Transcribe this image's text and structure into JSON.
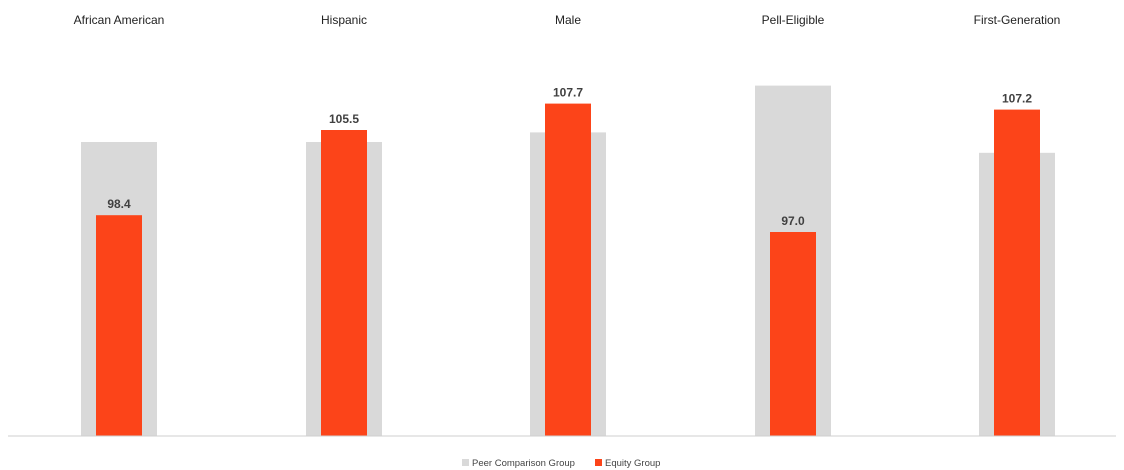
{
  "chart_data": {
    "type": "bar",
    "title": "",
    "xlabel": "",
    "ylabel": "",
    "categories": [
      "African American",
      "Hispanic",
      "Male",
      "Pell-Eligible",
      "First-Generation"
    ],
    "series": [
      {
        "name": "Peer Comparison Group",
        "values": [
          104.5,
          104.5,
          105.3,
          109.2,
          103.6
        ],
        "color": "#d9d9d9"
      },
      {
        "name": "Equity Group",
        "values": [
          98.4,
          105.5,
          107.7,
          97.0,
          107.2
        ],
        "color": "#fc4419"
      }
    ],
    "data_labels_series": "Equity Group",
    "ylim": [
      80,
      110
    ],
    "grid": false,
    "legend": "bottom-center",
    "category_labels_position": "top"
  }
}
